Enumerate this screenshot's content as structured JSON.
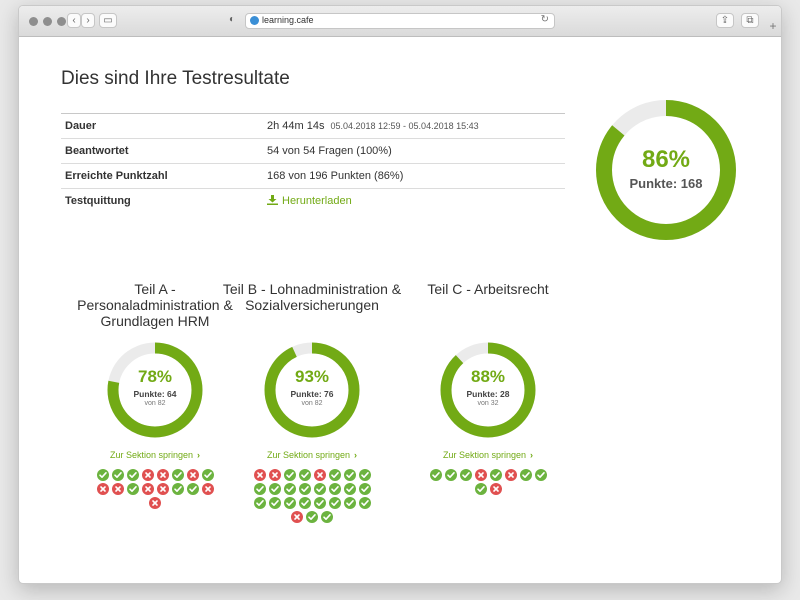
{
  "browser": {
    "url": "learning.cafe"
  },
  "page": {
    "title": "Dies sind Ihre Testresultate",
    "rows": [
      {
        "label": "Dauer",
        "value": "2h 44m 14s",
        "extra": "05.04.2018 12:59 - 05.04.2018 15:43"
      },
      {
        "label": "Beantwortet",
        "value": "54 von 54 Fragen (100%)"
      },
      {
        "label": "Erreichte Punktzahl",
        "value": "168 von 196 Punkten (86%)"
      },
      {
        "label": "Testquittung",
        "value": "Herunterladen"
      }
    ],
    "overall": {
      "percent": "86%",
      "points": "Punkte: 168",
      "fraction": 0.86
    },
    "sections": [
      {
        "title": "Teil A - Personaladministration & Grundlagen HRM",
        "percent": "78%",
        "points": "Punkte: 64",
        "of": "von 82",
        "fraction": 0.78,
        "link": "Zur Sektion springen",
        "marks": [
          [
            1,
            1,
            1,
            0,
            0,
            1,
            0,
            1
          ],
          [
            0,
            0,
            1,
            0,
            0,
            1,
            1,
            0
          ],
          [
            0
          ]
        ]
      },
      {
        "title": "Teil B - Lohnadministration & Sozialversicherungen",
        "percent": "93%",
        "points": "Punkte: 76",
        "of": "von 82",
        "fraction": 0.93,
        "link": "Zur Sektion springen",
        "marks": [
          [
            0,
            0,
            1,
            1,
            0,
            1,
            1,
            1
          ],
          [
            1,
            1,
            1,
            1,
            1,
            1,
            1,
            1
          ],
          [
            1,
            1,
            1,
            1,
            1,
            1,
            1,
            1
          ],
          [
            0,
            1,
            1
          ]
        ]
      },
      {
        "title": "Teil C - Arbeitsrecht",
        "percent": "88%",
        "points": "Punkte: 28",
        "of": "von 32",
        "fraction": 0.88,
        "link": "Zur Sektion springen",
        "marks": [
          [
            1,
            1,
            1,
            0,
            1,
            0,
            1,
            1
          ],
          [
            1,
            0
          ]
        ]
      }
    ]
  },
  "colors": {
    "accent": "#72aa15",
    "track": "#ebebeb",
    "correct": "#6cb33f",
    "wrong": "#e05050"
  },
  "icons": [
    "download-icon",
    "chevron-right-icon",
    "check-icon",
    "cross-icon"
  ]
}
